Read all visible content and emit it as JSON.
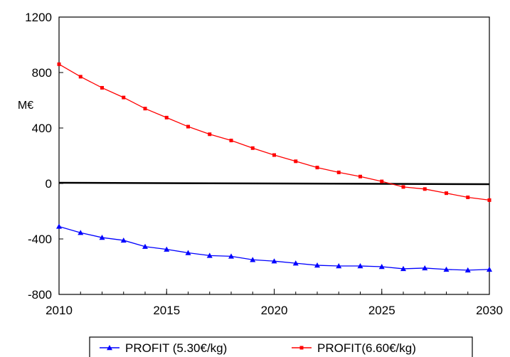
{
  "chart_data": {
    "type": "line",
    "ylabel": "M€",
    "xlim": [
      2010,
      2030
    ],
    "ylim": [
      -800,
      1200
    ],
    "x_ticks": [
      2010,
      2015,
      2020,
      2025,
      2030
    ],
    "y_ticks": [
      -800,
      -400,
      0,
      400,
      800,
      1200
    ],
    "grid": false,
    "legend_position": "bottom",
    "reference_line": {
      "y": 0,
      "color": "#000000"
    },
    "x": [
      2010,
      2011,
      2012,
      2013,
      2014,
      2015,
      2016,
      2017,
      2018,
      2019,
      2020,
      2021,
      2022,
      2023,
      2024,
      2025,
      2026,
      2027,
      2028,
      2029,
      2030
    ],
    "series": [
      {
        "name": "PROFIT (5.30€/kg)",
        "color": "#0000ff",
        "marker": "triangle",
        "values": [
          -310,
          -355,
          -390,
          -410,
          -455,
          -475,
          -500,
          -520,
          -525,
          -550,
          -560,
          -575,
          -590,
          -595,
          -595,
          -600,
          -615,
          -610,
          -620,
          -625,
          -620
        ]
      },
      {
        "name": "PROFIT(6.60€/kg)",
        "color": "#ff0000",
        "marker": "square",
        "values": [
          860,
          770,
          690,
          620,
          540,
          475,
          410,
          355,
          310,
          255,
          205,
          160,
          115,
          80,
          50,
          15,
          -25,
          -40,
          -70,
          -100,
          -120
        ]
      }
    ]
  }
}
